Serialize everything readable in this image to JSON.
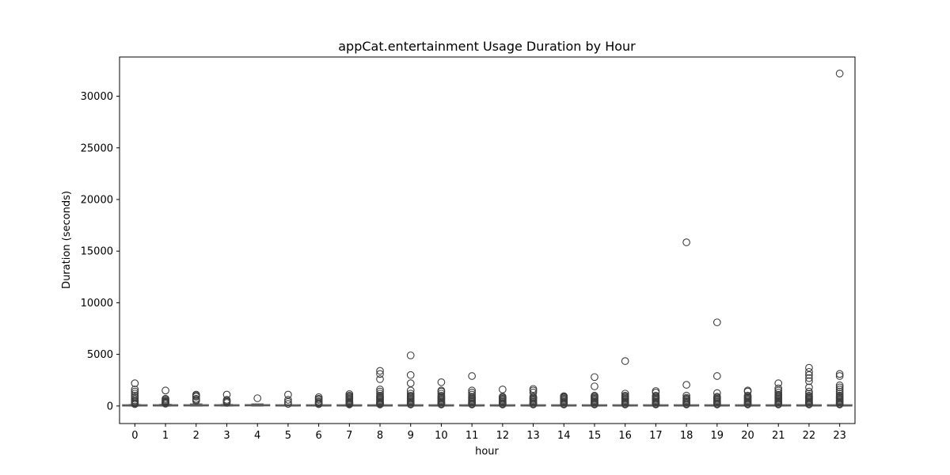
{
  "chart_data": {
    "type": "box",
    "title": "appCat.entertainment Usage Duration by Hour",
    "xlabel": "hour",
    "ylabel": "Duration (seconds)",
    "categories": [
      "0",
      "1",
      "2",
      "3",
      "4",
      "5",
      "6",
      "7",
      "8",
      "9",
      "10",
      "11",
      "12",
      "13",
      "14",
      "15",
      "16",
      "17",
      "18",
      "19",
      "20",
      "21",
      "22",
      "23"
    ],
    "yticks": [
      0,
      5000,
      10000,
      15000,
      20000,
      25000,
      30000
    ],
    "ylim": [
      -1700,
      33800
    ],
    "grid": false,
    "box_color": "#555555",
    "boxes": [
      {
        "hour": "0",
        "q1": 5,
        "median": 20,
        "q3": 60,
        "whisker_low": 0,
        "whisker_high": 140,
        "outliers": [
          2200,
          1600,
          1400,
          1200,
          1000,
          850,
          700,
          550,
          450,
          350,
          250,
          180
        ]
      },
      {
        "hour": "1",
        "q1": 8,
        "median": 25,
        "q3": 70,
        "whisker_low": 0,
        "whisker_high": 160,
        "outliers": [
          1500,
          700,
          600,
          500,
          420,
          350,
          280,
          220
        ]
      },
      {
        "hour": "2",
        "q1": 10,
        "median": 30,
        "q3": 90,
        "whisker_low": 0,
        "whisker_high": 200,
        "outliers": [
          1100,
          1000,
          900,
          700,
          600,
          500
        ]
      },
      {
        "hour": "3",
        "q1": 10,
        "median": 30,
        "q3": 70,
        "whisker_low": 0,
        "whisker_high": 150,
        "outliers": [
          1100,
          600,
          500,
          400,
          300
        ]
      },
      {
        "hour": "4",
        "q1": 15,
        "median": 40,
        "q3": 90,
        "whisker_low": 0,
        "whisker_high": 200,
        "outliers": [
          750
        ]
      },
      {
        "hour": "5",
        "q1": 5,
        "median": 15,
        "q3": 40,
        "whisker_low": 0,
        "whisker_high": 90,
        "outliers": [
          1100,
          600,
          400,
          200
        ]
      },
      {
        "hour": "6",
        "q1": 5,
        "median": 15,
        "q3": 45,
        "whisker_low": 0,
        "whisker_high": 100,
        "outliers": [
          850,
          700,
          600,
          450,
          350,
          250,
          180
        ]
      },
      {
        "hour": "7",
        "q1": 5,
        "median": 15,
        "q3": 45,
        "whisker_low": 0,
        "whisker_high": 100,
        "outliers": [
          1150,
          1000,
          900,
          800,
          700,
          600,
          500,
          400,
          350,
          300,
          250,
          200,
          150
        ]
      },
      {
        "hour": "8",
        "q1": 5,
        "median": 15,
        "q3": 45,
        "whisker_low": 0,
        "whisker_high": 100,
        "outliers": [
          3400,
          3100,
          2600,
          1600,
          1400,
          1200,
          1000,
          900,
          800,
          700,
          600,
          500,
          400,
          300,
          250,
          200,
          150
        ]
      },
      {
        "hour": "9",
        "q1": 5,
        "median": 15,
        "q3": 45,
        "whisker_low": 0,
        "whisker_high": 100,
        "outliers": [
          4900,
          3000,
          2200,
          1500,
          1200,
          1000,
          900,
          800,
          700,
          600,
          500,
          400,
          300,
          200,
          150
        ]
      },
      {
        "hour": "10",
        "q1": 5,
        "median": 15,
        "q3": 45,
        "whisker_low": 0,
        "whisker_high": 100,
        "outliers": [
          2300,
          1500,
          1400,
          1200,
          1000,
          900,
          800,
          700,
          600,
          500,
          400,
          300,
          200,
          150
        ]
      },
      {
        "hour": "11",
        "q1": 5,
        "median": 15,
        "q3": 45,
        "whisker_low": 0,
        "whisker_high": 100,
        "outliers": [
          2900,
          1500,
          1300,
          1100,
          900,
          800,
          700,
          600,
          500,
          400,
          300,
          200,
          150
        ]
      },
      {
        "hour": "12",
        "q1": 5,
        "median": 15,
        "q3": 45,
        "whisker_low": 0,
        "whisker_high": 100,
        "outliers": [
          1600,
          900,
          800,
          700,
          600,
          500,
          400,
          300,
          200,
          150
        ]
      },
      {
        "hour": "13",
        "q1": 5,
        "median": 15,
        "q3": 45,
        "whisker_low": 0,
        "whisker_high": 100,
        "outliers": [
          1650,
          1500,
          1300,
          900,
          800,
          700,
          600,
          500,
          400,
          300,
          200,
          150
        ]
      },
      {
        "hour": "14",
        "q1": 5,
        "median": 15,
        "q3": 45,
        "whisker_low": 0,
        "whisker_high": 100,
        "outliers": [
          950,
          900,
          850,
          800,
          700,
          600,
          500,
          400,
          300,
          200,
          150
        ]
      },
      {
        "hour": "15",
        "q1": 5,
        "median": 15,
        "q3": 45,
        "whisker_low": 0,
        "whisker_high": 100,
        "outliers": [
          2800,
          1900,
          1000,
          900,
          800,
          700,
          600,
          500,
          400,
          300,
          200,
          150
        ]
      },
      {
        "hour": "16",
        "q1": 5,
        "median": 15,
        "q3": 45,
        "whisker_low": 0,
        "whisker_high": 100,
        "outliers": [
          4350,
          1200,
          1000,
          900,
          800,
          700,
          600,
          500,
          400,
          300,
          200,
          150
        ]
      },
      {
        "hour": "17",
        "q1": 5,
        "median": 15,
        "q3": 45,
        "whisker_low": 0,
        "whisker_high": 100,
        "outliers": [
          1450,
          1300,
          1000,
          900,
          800,
          700,
          600,
          500,
          400,
          300,
          200,
          150
        ]
      },
      {
        "hour": "18",
        "q1": 5,
        "median": 15,
        "q3": 45,
        "whisker_low": 0,
        "whisker_high": 100,
        "outliers": [
          15850,
          2050,
          1000,
          800,
          700,
          600,
          500,
          400,
          300,
          200,
          150
        ]
      },
      {
        "hour": "19",
        "q1": 5,
        "median": 15,
        "q3": 45,
        "whisker_low": 0,
        "whisker_high": 100,
        "outliers": [
          8100,
          2900,
          1250,
          900,
          800,
          700,
          600,
          500,
          400,
          300,
          200,
          150
        ]
      },
      {
        "hour": "20",
        "q1": 5,
        "median": 15,
        "q3": 45,
        "whisker_low": 0,
        "whisker_high": 100,
        "outliers": [
          1500,
          1400,
          1000,
          900,
          800,
          700,
          600,
          500,
          400,
          300,
          200,
          150
        ]
      },
      {
        "hour": "21",
        "q1": 5,
        "median": 15,
        "q3": 45,
        "whisker_low": 0,
        "whisker_high": 100,
        "outliers": [
          2200,
          1700,
          1500,
          1300,
          1100,
          1000,
          900,
          800,
          700,
          600,
          500,
          400,
          300,
          200,
          150
        ]
      },
      {
        "hour": "22",
        "q1": 5,
        "median": 15,
        "q3": 45,
        "whisker_low": 0,
        "whisker_high": 100,
        "outliers": [
          3700,
          3300,
          3000,
          2700,
          2400,
          1800,
          1400,
          1200,
          1000,
          900,
          800,
          700,
          600,
          500,
          400,
          300,
          200,
          150
        ]
      },
      {
        "hour": "23",
        "q1": 5,
        "median": 15,
        "q3": 45,
        "whisker_low": 0,
        "whisker_high": 100,
        "outliers": [
          32200,
          3100,
          2900,
          2000,
          1800,
          1600,
          1400,
          1200,
          1000,
          900,
          800,
          700,
          600,
          500,
          400,
          300,
          200,
          150
        ]
      }
    ]
  }
}
